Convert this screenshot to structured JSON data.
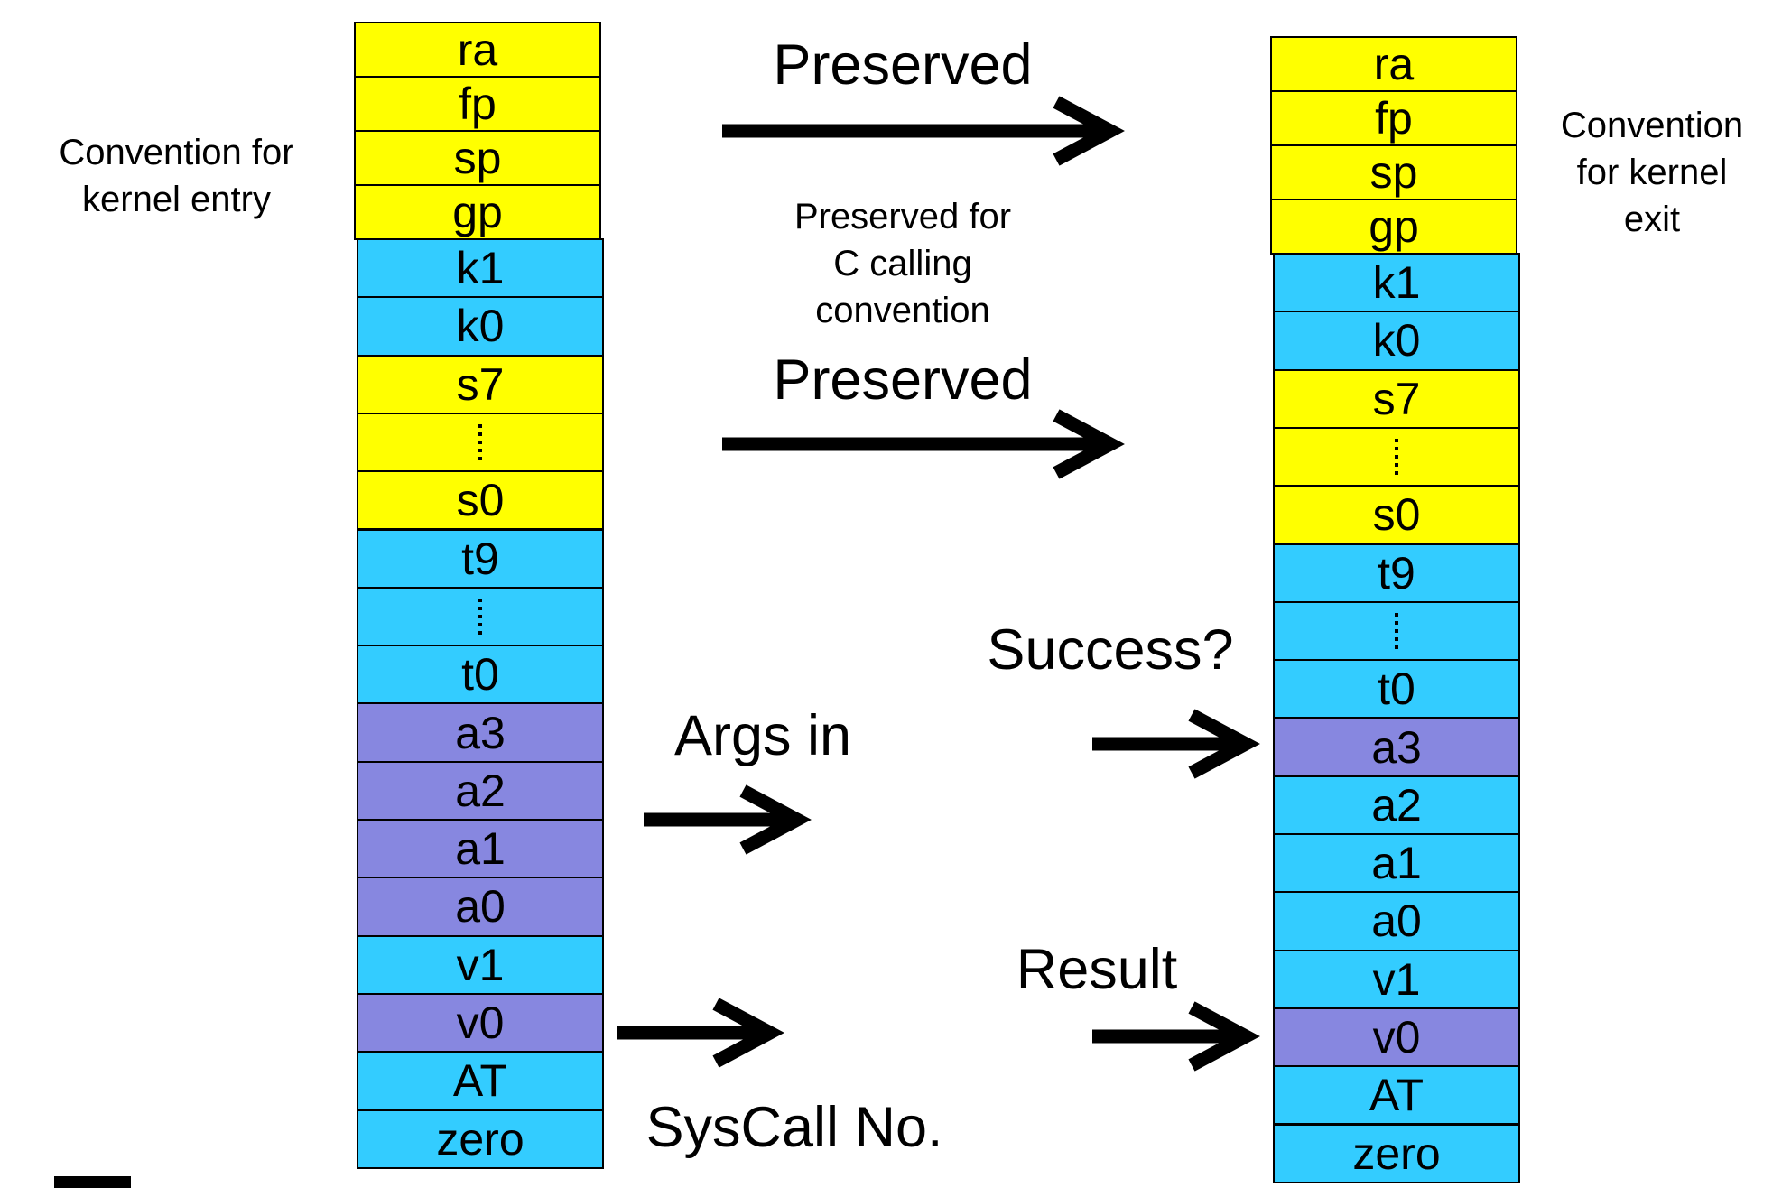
{
  "colors": {
    "preserved": "#ffff00",
    "kernel_reg": "#33ccff",
    "arg_result": "#8787e0",
    "stroke": "#000000"
  },
  "left_stack": {
    "caption": "Convention for\nkernel entry",
    "registers": [
      {
        "name": "ra",
        "color": "preserved"
      },
      {
        "name": "fp",
        "color": "preserved"
      },
      {
        "name": "sp",
        "color": "preserved"
      },
      {
        "name": "gp",
        "color": "preserved"
      },
      {
        "name": "k1",
        "color": "kernel_reg"
      },
      {
        "name": "k0",
        "color": "kernel_reg"
      },
      {
        "name": "s7",
        "color": "preserved"
      },
      {
        "name": "",
        "color": "preserved",
        "ellipsis": true
      },
      {
        "name": "s0",
        "color": "preserved"
      },
      {
        "name": "t9",
        "color": "kernel_reg"
      },
      {
        "name": "",
        "color": "kernel_reg",
        "ellipsis": true
      },
      {
        "name": "t0",
        "color": "kernel_reg"
      },
      {
        "name": "a3",
        "color": "arg_result"
      },
      {
        "name": "a2",
        "color": "arg_result"
      },
      {
        "name": "a1",
        "color": "arg_result"
      },
      {
        "name": "a0",
        "color": "arg_result"
      },
      {
        "name": "v1",
        "color": "kernel_reg"
      },
      {
        "name": "v0",
        "color": "arg_result"
      },
      {
        "name": "AT",
        "color": "kernel_reg"
      },
      {
        "name": "zero",
        "color": "kernel_reg"
      }
    ]
  },
  "right_stack": {
    "caption": "Convention\nfor kernel\nexit",
    "registers": [
      {
        "name": "ra",
        "color": "preserved"
      },
      {
        "name": "fp",
        "color": "preserved"
      },
      {
        "name": "sp",
        "color": "preserved"
      },
      {
        "name": "gp",
        "color": "preserved"
      },
      {
        "name": "k1",
        "color": "kernel_reg"
      },
      {
        "name": "k0",
        "color": "kernel_reg"
      },
      {
        "name": "s7",
        "color": "preserved"
      },
      {
        "name": "",
        "color": "preserved",
        "ellipsis": true
      },
      {
        "name": "s0",
        "color": "preserved"
      },
      {
        "name": "t9",
        "color": "kernel_reg"
      },
      {
        "name": "",
        "color": "kernel_reg",
        "ellipsis": true
      },
      {
        "name": "t0",
        "color": "kernel_reg"
      },
      {
        "name": "a3",
        "color": "arg_result"
      },
      {
        "name": "a2",
        "color": "kernel_reg"
      },
      {
        "name": "a1",
        "color": "kernel_reg"
      },
      {
        "name": "a0",
        "color": "kernel_reg"
      },
      {
        "name": "v1",
        "color": "kernel_reg"
      },
      {
        "name": "v0",
        "color": "arg_result"
      },
      {
        "name": "AT",
        "color": "kernel_reg"
      },
      {
        "name": "zero",
        "color": "kernel_reg"
      }
    ]
  },
  "labels": {
    "preserved_top": "Preserved",
    "preserved_note": "Preserved for\nC calling\nconvention",
    "preserved_mid": "Preserved",
    "success": "Success?",
    "args_in": "Args in",
    "result": "Result",
    "syscall_no": "SysCall No."
  }
}
